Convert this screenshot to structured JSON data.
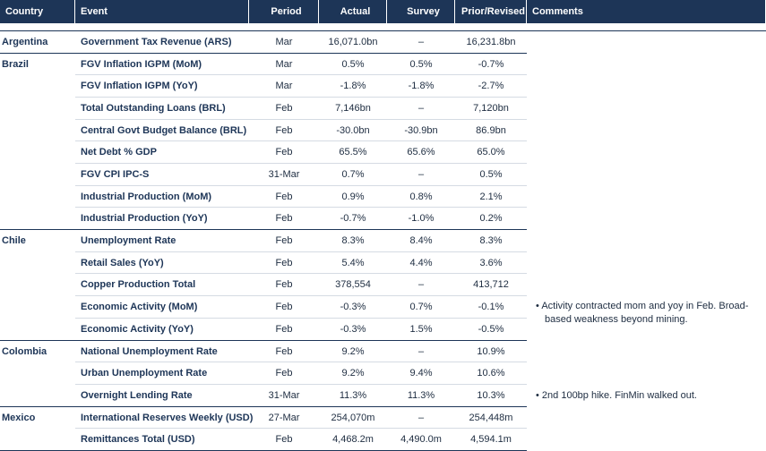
{
  "header": [
    "Country",
    "Event",
    "Period",
    "Actual",
    "Survey",
    "Prior/Revised",
    "Comments"
  ],
  "groups": [
    {
      "country": "Argentina",
      "rows": [
        [
          "Government Tax Revenue (ARS)",
          "Mar",
          "16,071.0bn",
          "–",
          "16,231.8bn"
        ]
      ]
    },
    {
      "country": "Brazil",
      "rows": [
        [
          "FGV Inflation IGPM (MoM)",
          "Mar",
          "0.5%",
          "0.5%",
          "-0.7%"
        ],
        [
          "FGV Inflation IGPM (YoY)",
          "Mar",
          "-1.8%",
          "-1.8%",
          "-2.7%"
        ],
        [
          "Total Outstanding Loans (BRL)",
          "Feb",
          "7,146bn",
          "–",
          "7,120bn"
        ],
        [
          "Central Govt Budget Balance (BRL)",
          "Feb",
          "-30.0bn",
          "-30.9bn",
          "86.9bn"
        ],
        [
          "Net Debt % GDP",
          "Feb",
          "65.5%",
          "65.6%",
          "65.0%"
        ],
        [
          "FGV CPI IPC-S",
          "31-Mar",
          "0.7%",
          "–",
          "0.5%"
        ],
        [
          "Industrial Production (MoM)",
          "Feb",
          "0.9%",
          "0.8%",
          "2.1%"
        ],
        [
          "Industrial Production (YoY)",
          "Feb",
          "-0.7%",
          "-1.0%",
          "0.2%"
        ]
      ]
    },
    {
      "country": "Chile",
      "rows": [
        [
          "Unemployment Rate",
          "Feb",
          "8.3%",
          "8.4%",
          "8.3%"
        ],
        [
          "Retail Sales (YoY)",
          "Feb",
          "5.4%",
          "4.4%",
          "3.6%"
        ],
        [
          "Copper Production Total",
          "Feb",
          "378,554",
          "–",
          "413,712"
        ],
        [
          "Economic Activity (MoM)",
          "Feb",
          "-0.3%",
          "0.7%",
          "-0.1%"
        ],
        [
          "Economic Activity (YoY)",
          "Feb",
          "-0.3%",
          "1.5%",
          "-0.5%"
        ]
      ],
      "comment": "Activity contracted mom and yoy in Feb. Broad-based weakness beyond mining."
    },
    {
      "country": "Colombia",
      "rows": [
        [
          "National Unemployment Rate",
          "Feb",
          "9.2%",
          "–",
          "10.9%"
        ],
        [
          "Urban Unemployment Rate",
          "Feb",
          "9.2%",
          "9.4%",
          "10.6%"
        ],
        [
          "Overnight Lending Rate",
          "31-Mar",
          "11.3%",
          "11.3%",
          "10.3%"
        ]
      ],
      "comment": "2nd 100bp hike. FinMin walked out."
    },
    {
      "country": "Mexico",
      "rows": [
        [
          "International Reserves Weekly (USD)",
          "27-Mar",
          "254,070m",
          "–",
          "254,448m"
        ],
        [
          "Remittances Total (USD)",
          "Feb",
          "4,468.2m",
          "4,490.0m",
          "4,594.1m"
        ]
      ]
    }
  ]
}
